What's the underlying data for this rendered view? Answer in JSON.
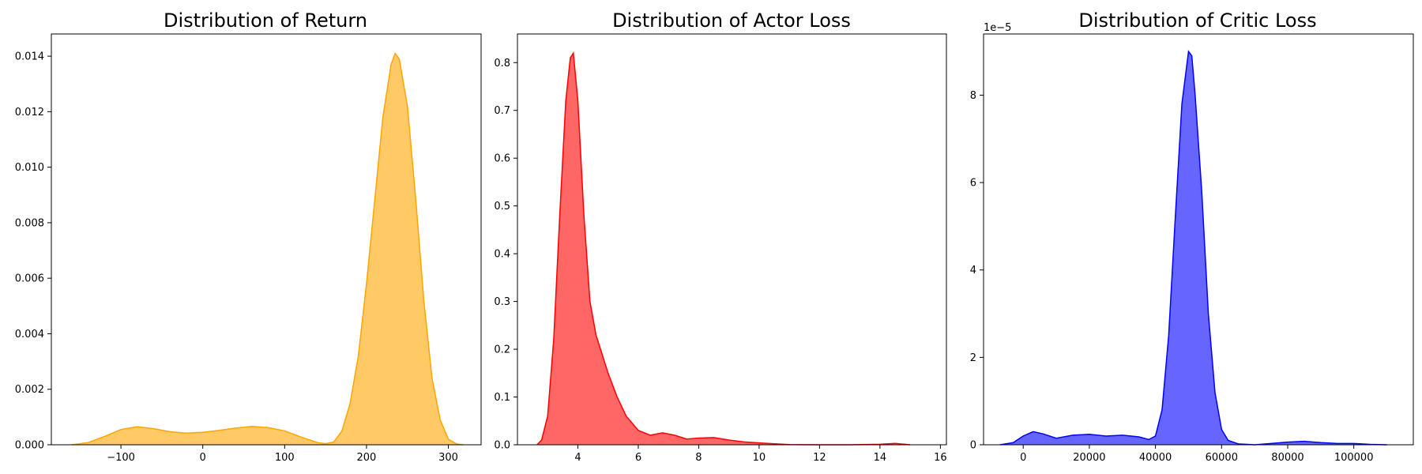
{
  "chart_data": [
    {
      "type": "area",
      "title": "Distribution of Return",
      "xlabel": "",
      "ylabel": "",
      "xlim": [
        -185,
        340
      ],
      "ylim": [
        0,
        0.0148
      ],
      "xticks": [
        -100,
        0,
        100,
        200,
        300
      ],
      "xtick_labels": [
        "−100",
        "0",
        "100",
        "200",
        "300"
      ],
      "yticks": [
        0,
        0.002,
        0.004,
        0.006,
        0.008,
        0.01,
        0.012,
        0.014
      ],
      "ytick_labels": [
        "0.000",
        "0.002",
        "0.004",
        "0.006",
        "0.008",
        "0.010",
        "0.012",
        "0.014"
      ],
      "y_offset_label": "",
      "fill_color": "#ffa500",
      "line_color": "#ffa500",
      "fill_opacity": 0.6,
      "grid": false,
      "x": [
        -160,
        -140,
        -120,
        -100,
        -80,
        -60,
        -40,
        -20,
        0,
        20,
        40,
        60,
        80,
        100,
        120,
        140,
        150,
        160,
        170,
        180,
        190,
        200,
        210,
        220,
        230,
        235,
        240,
        250,
        260,
        270,
        280,
        290,
        300,
        310,
        318
      ],
      "y": [
        0.0,
        8e-05,
        0.0003,
        0.00055,
        0.00065,
        0.00058,
        0.00047,
        0.00042,
        0.00045,
        0.00052,
        0.0006,
        0.00066,
        0.00062,
        0.0005,
        0.00028,
        8e-05,
        4e-05,
        0.0001,
        0.0005,
        0.0015,
        0.0032,
        0.0058,
        0.0088,
        0.0118,
        0.0137,
        0.0141,
        0.0139,
        0.0122,
        0.0089,
        0.0052,
        0.0024,
        0.0009,
        0.0002,
        3e-05,
        0.0
      ]
    },
    {
      "type": "area",
      "title": "Distribution of Actor Loss",
      "xlabel": "",
      "ylabel": "",
      "xlim": [
        2.0,
        16.2
      ],
      "ylim": [
        0,
        0.86
      ],
      "xticks": [
        4,
        6,
        8,
        10,
        12,
        14,
        16
      ],
      "xtick_labels": [
        "4",
        "6",
        "8",
        "10",
        "12",
        "14",
        "16"
      ],
      "yticks": [
        0,
        0.1,
        0.2,
        0.3,
        0.4,
        0.5,
        0.6,
        0.7,
        0.8
      ],
      "ytick_labels": [
        "0.0",
        "0.1",
        "0.2",
        "0.3",
        "0.4",
        "0.5",
        "0.6",
        "0.7",
        "0.8"
      ],
      "y_offset_label": "",
      "fill_color": "#ff0000",
      "line_color": "#ff0000",
      "fill_opacity": 0.6,
      "grid": false,
      "x": [
        2.65,
        2.8,
        3.0,
        3.2,
        3.4,
        3.6,
        3.75,
        3.85,
        4.0,
        4.2,
        4.4,
        4.6,
        4.8,
        5.0,
        5.3,
        5.6,
        6.0,
        6.4,
        6.8,
        7.2,
        7.6,
        8.0,
        8.5,
        9.0,
        9.5,
        10.0,
        10.5,
        11.0,
        12.0,
        13.0,
        14.0,
        14.5,
        15.0
      ],
      "y": [
        0.0,
        0.01,
        0.06,
        0.22,
        0.48,
        0.72,
        0.81,
        0.82,
        0.72,
        0.48,
        0.3,
        0.23,
        0.19,
        0.15,
        0.1,
        0.06,
        0.03,
        0.02,
        0.025,
        0.02,
        0.012,
        0.014,
        0.015,
        0.01,
        0.006,
        0.004,
        0.002,
        0.0005,
        0.0,
        0.0,
        0.001,
        0.003,
        0.0
      ]
    },
    {
      "type": "area",
      "title": "Distribution of Critic Loss",
      "xlabel": "",
      "ylabel": "",
      "xlim": [
        -12000,
        118000
      ],
      "ylim": [
        0,
        9.4
      ],
      "xticks": [
        0,
        20000,
        40000,
        60000,
        80000,
        100000
      ],
      "xtick_labels": [
        "0",
        "20000",
        "40000",
        "60000",
        "80000",
        "100000"
      ],
      "yticks": [
        0,
        2,
        4,
        6,
        8
      ],
      "ytick_labels": [
        "0",
        "2",
        "4",
        "6",
        "8"
      ],
      "y_offset_label": "1e−5",
      "fill_color": "#0000ff",
      "line_color": "#0000ff",
      "fill_opacity": 0.6,
      "grid": false,
      "x": [
        -7000,
        -3000,
        0,
        3000,
        6000,
        10000,
        15000,
        20000,
        25000,
        30000,
        35000,
        38000,
        40000,
        42000,
        44000,
        46000,
        48000,
        50000,
        51000,
        52000,
        54000,
        56000,
        58000,
        60000,
        62000,
        65000,
        70000,
        75000,
        80000,
        85000,
        90000,
        95000,
        100000,
        105000,
        110000
      ],
      "y": [
        0.0,
        0.05,
        0.2,
        0.3,
        0.25,
        0.15,
        0.22,
        0.24,
        0.2,
        0.22,
        0.18,
        0.12,
        0.2,
        0.8,
        2.5,
        5.2,
        7.8,
        9.0,
        8.9,
        8.0,
        5.8,
        3.0,
        1.2,
        0.35,
        0.1,
        0.02,
        0.0,
        0.03,
        0.06,
        0.08,
        0.05,
        0.03,
        0.03,
        0.01,
        0.0
      ]
    }
  ]
}
